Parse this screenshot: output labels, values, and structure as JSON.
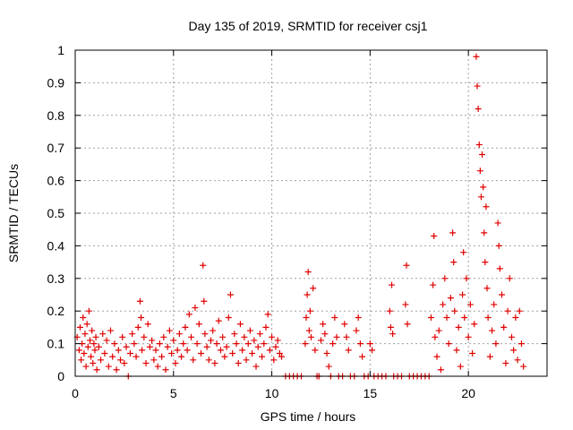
{
  "chart_data": {
    "type": "scatter",
    "title": "Day 135 of 2019, SRMTID for receiver csj1",
    "xlabel": "GPS time / hours",
    "ylabel": "SRMTID / TECUs",
    "xlim": [
      0,
      24
    ],
    "ylim": [
      0,
      1
    ],
    "xticks": [
      0,
      5,
      10,
      15,
      20
    ],
    "xtick_labels": [
      "0",
      "5",
      "10",
      "15",
      "20"
    ],
    "yticks": [
      0,
      0.1,
      0.2,
      0.3,
      0.4,
      0.5,
      0.6,
      0.7,
      0.8,
      0.9,
      1
    ],
    "ytick_labels": [
      "0",
      "0.1",
      "0.2",
      "0.3",
      "0.4",
      "0.5",
      "0.6",
      "0.7",
      "0.8",
      "0.9",
      "1"
    ],
    "grid": true,
    "marker": "+",
    "color": "#e00000",
    "series": [
      {
        "name": "SRMTID",
        "points": [
          [
            0.1,
            0.12
          ],
          [
            0.2,
            0.08
          ],
          [
            0.25,
            0.15
          ],
          [
            0.3,
            0.05
          ],
          [
            0.35,
            0.1
          ],
          [
            0.4,
            0.18
          ],
          [
            0.45,
            0.07
          ],
          [
            0.5,
            0.13
          ],
          [
            0.55,
            0.03
          ],
          [
            0.6,
            0.16
          ],
          [
            0.65,
            0.09
          ],
          [
            0.7,
            0.2
          ],
          [
            0.75,
            0.11
          ],
          [
            0.8,
            0.06
          ],
          [
            0.85,
            0.14
          ],
          [
            0.9,
            0.04
          ],
          [
            0.95,
            0.1
          ],
          [
            1.0,
            0.08
          ],
          [
            1.05,
            0.12
          ],
          [
            1.1,
            0.02
          ],
          [
            1.2,
            0.09
          ],
          [
            1.3,
            0.05
          ],
          [
            1.4,
            0.13
          ],
          [
            1.5,
            0.07
          ],
          [
            1.6,
            0.11
          ],
          [
            1.7,
            0.03
          ],
          [
            1.8,
            0.14
          ],
          [
            1.9,
            0.06
          ],
          [
            2.0,
            0.1
          ],
          [
            2.1,
            0.02
          ],
          [
            2.2,
            0.08
          ],
          [
            2.3,
            0.05
          ],
          [
            2.4,
            0.12
          ],
          [
            2.5,
            0.04
          ],
          [
            2.6,
            0.09
          ],
          [
            2.7,
            0.0
          ],
          [
            2.8,
            0.07
          ],
          [
            2.9,
            0.13
          ],
          [
            3.0,
            0.1
          ],
          [
            3.1,
            0.06
          ],
          [
            3.2,
            0.15
          ],
          [
            3.3,
            0.23
          ],
          [
            3.35,
            0.18
          ],
          [
            3.4,
            0.08
          ],
          [
            3.5,
            0.12
          ],
          [
            3.6,
            0.04
          ],
          [
            3.7,
            0.16
          ],
          [
            3.8,
            0.09
          ],
          [
            3.9,
            0.11
          ],
          [
            4.0,
            0.05
          ],
          [
            4.1,
            0.08
          ],
          [
            4.2,
            0.03
          ],
          [
            4.3,
            0.1
          ],
          [
            4.4,
            0.06
          ],
          [
            4.5,
            0.12
          ],
          [
            4.6,
            0.02
          ],
          [
            4.7,
            0.09
          ],
          [
            4.8,
            0.14
          ],
          [
            4.9,
            0.07
          ],
          [
            5.0,
            0.11
          ],
          [
            5.1,
            0.04
          ],
          [
            5.2,
            0.08
          ],
          [
            5.3,
            0.13
          ],
          [
            5.4,
            0.06
          ],
          [
            5.5,
            0.1
          ],
          [
            5.6,
            0.15
          ],
          [
            5.7,
            0.08
          ],
          [
            5.8,
            0.19
          ],
          [
            5.9,
            0.12
          ],
          [
            6.0,
            0.05
          ],
          [
            6.1,
            0.21
          ],
          [
            6.2,
            0.1
          ],
          [
            6.3,
            0.16
          ],
          [
            6.4,
            0.07
          ],
          [
            6.5,
            0.34
          ],
          [
            6.55,
            0.23
          ],
          [
            6.6,
            0.13
          ],
          [
            6.7,
            0.09
          ],
          [
            6.8,
            0.05
          ],
          [
            6.9,
            0.11
          ],
          [
            7.0,
            0.14
          ],
          [
            7.1,
            0.04
          ],
          [
            7.2,
            0.1
          ],
          [
            7.3,
            0.17
          ],
          [
            7.4,
            0.08
          ],
          [
            7.5,
            0.12
          ],
          [
            7.6,
            0.06
          ],
          [
            7.7,
            0.09
          ],
          [
            7.8,
            0.18
          ],
          [
            7.9,
            0.25
          ],
          [
            8.0,
            0.07
          ],
          [
            8.1,
            0.13
          ],
          [
            8.2,
            0.1
          ],
          [
            8.3,
            0.04
          ],
          [
            8.4,
            0.16
          ],
          [
            8.5,
            0.08
          ],
          [
            8.6,
            0.12
          ],
          [
            8.7,
            0.05
          ],
          [
            8.8,
            0.1
          ],
          [
            8.9,
            0.14
          ],
          [
            9.0,
            0.07
          ],
          [
            9.1,
            0.11
          ],
          [
            9.2,
            0.03
          ],
          [
            9.3,
            0.09
          ],
          [
            9.4,
            0.13
          ],
          [
            9.5,
            0.06
          ],
          [
            9.6,
            0.1
          ],
          [
            9.7,
            0.15
          ],
          [
            9.8,
            0.19
          ],
          [
            9.9,
            0.08
          ],
          [
            10.0,
            0.12
          ],
          [
            10.1,
            0.05
          ],
          [
            10.2,
            0.09
          ],
          [
            10.3,
            0.11
          ],
          [
            10.4,
            0.07
          ],
          [
            10.5,
            0.06
          ],
          [
            10.7,
            0.0
          ],
          [
            10.9,
            0.0
          ],
          [
            11.1,
            0.0
          ],
          [
            11.3,
            0.0
          ],
          [
            11.5,
            0.0
          ],
          [
            11.7,
            0.1
          ],
          [
            11.75,
            0.18
          ],
          [
            11.8,
            0.25
          ],
          [
            11.85,
            0.32
          ],
          [
            11.9,
            0.14
          ],
          [
            11.95,
            0.2
          ],
          [
            12.0,
            0.12
          ],
          [
            12.1,
            0.27
          ],
          [
            12.2,
            0.08
          ],
          [
            12.3,
            0.0
          ],
          [
            12.4,
            0.0
          ],
          [
            12.5,
            0.11
          ],
          [
            12.6,
            0.16
          ],
          [
            12.7,
            0.13
          ],
          [
            12.8,
            0.07
          ],
          [
            12.9,
            0.03
          ],
          [
            13.0,
            0.0
          ],
          [
            13.1,
            0.1
          ],
          [
            13.2,
            0.18
          ],
          [
            13.3,
            0.12
          ],
          [
            13.4,
            0.0
          ],
          [
            13.6,
            0.0
          ],
          [
            13.7,
            0.16
          ],
          [
            13.8,
            0.12
          ],
          [
            13.9,
            0.08
          ],
          [
            14.0,
            0.0
          ],
          [
            14.2,
            0.0
          ],
          [
            14.3,
            0.14
          ],
          [
            14.4,
            0.18
          ],
          [
            14.5,
            0.1
          ],
          [
            14.6,
            0.06
          ],
          [
            14.7,
            0.0
          ],
          [
            14.9,
            0.0
          ],
          [
            15.0,
            0.1
          ],
          [
            15.1,
            0.08
          ],
          [
            15.2,
            0.0
          ],
          [
            15.4,
            0.0
          ],
          [
            15.6,
            0.0
          ],
          [
            15.8,
            0.0
          ],
          [
            16.0,
            0.2
          ],
          [
            16.05,
            0.15
          ],
          [
            16.1,
            0.28
          ],
          [
            16.15,
            0.13
          ],
          [
            16.2,
            0.0
          ],
          [
            16.4,
            0.0
          ],
          [
            16.6,
            0.0
          ],
          [
            16.8,
            0.22
          ],
          [
            16.85,
            0.34
          ],
          [
            16.9,
            0.16
          ],
          [
            17.0,
            0.0
          ],
          [
            17.2,
            0.0
          ],
          [
            17.4,
            0.0
          ],
          [
            17.6,
            0.0
          ],
          [
            17.8,
            0.0
          ],
          [
            18.0,
            0.0
          ],
          [
            18.1,
            0.18
          ],
          [
            18.2,
            0.28
          ],
          [
            18.25,
            0.43
          ],
          [
            18.3,
            0.12
          ],
          [
            18.4,
            0.06
          ],
          [
            18.5,
            0.14
          ],
          [
            18.6,
            0.02
          ],
          [
            18.7,
            0.22
          ],
          [
            18.8,
            0.3
          ],
          [
            18.9,
            0.18
          ],
          [
            19.0,
            0.1
          ],
          [
            19.1,
            0.24
          ],
          [
            19.2,
            0.44
          ],
          [
            19.25,
            0.35
          ],
          [
            19.3,
            0.2
          ],
          [
            19.4,
            0.08
          ],
          [
            19.5,
            0.15
          ],
          [
            19.6,
            0.03
          ],
          [
            19.7,
            0.25
          ],
          [
            19.75,
            0.38
          ],
          [
            19.8,
            0.18
          ],
          [
            19.9,
            0.3
          ],
          [
            20.0,
            0.12
          ],
          [
            20.1,
            0.22
          ],
          [
            20.2,
            0.07
          ],
          [
            20.3,
            0.16
          ],
          [
            20.4,
            0.98
          ],
          [
            20.45,
            0.89
          ],
          [
            20.5,
            0.82
          ],
          [
            20.55,
            0.71
          ],
          [
            20.6,
            0.63
          ],
          [
            20.65,
            0.55
          ],
          [
            20.7,
            0.68
          ],
          [
            20.75,
            0.58
          ],
          [
            20.8,
            0.44
          ],
          [
            20.85,
            0.35
          ],
          [
            20.9,
            0.52
          ],
          [
            20.95,
            0.27
          ],
          [
            21.0,
            0.18
          ],
          [
            21.1,
            0.06
          ],
          [
            21.2,
            0.14
          ],
          [
            21.3,
            0.22
          ],
          [
            21.4,
            0.1
          ],
          [
            21.5,
            0.47
          ],
          [
            21.55,
            0.4
          ],
          [
            21.6,
            0.33
          ],
          [
            21.7,
            0.25
          ],
          [
            21.8,
            0.15
          ],
          [
            21.9,
            0.04
          ],
          [
            22.0,
            0.2
          ],
          [
            22.1,
            0.3
          ],
          [
            22.2,
            0.12
          ],
          [
            22.3,
            0.08
          ],
          [
            22.4,
            0.18
          ],
          [
            22.5,
            0.05
          ],
          [
            22.6,
            0.2
          ],
          [
            22.7,
            0.1
          ],
          [
            22.8,
            0.03
          ]
        ]
      }
    ]
  }
}
